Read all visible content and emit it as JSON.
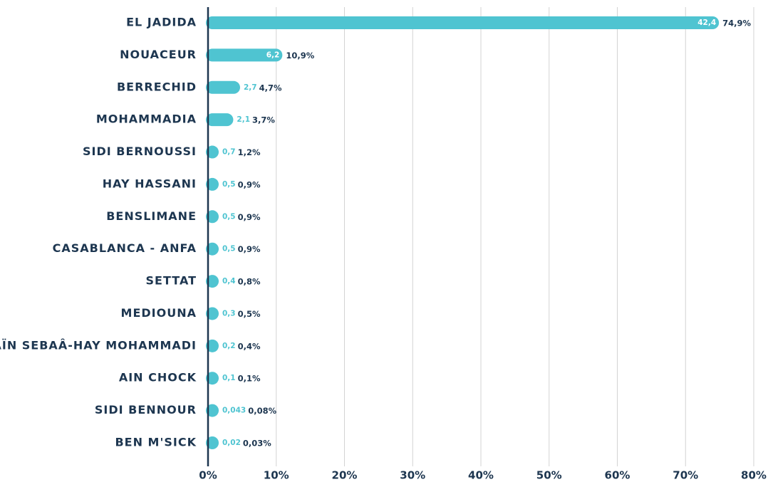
{
  "chart_data": {
    "type": "bar",
    "orientation": "horizontal",
    "categories": [
      "EL JADIDA",
      "NOUACEUR",
      "BERRECHID",
      "MOHAMMADIA",
      "SIDI BERNOUSSI",
      "HAY HASSANI",
      "BENSLIMANE",
      "CASABLANCA - ANFA",
      "SETTAT",
      "MEDIOUNA",
      "AÏN SEBAÂ-HAY MOHAMMADI",
      "AIN CHOCK",
      "SIDI BENNOUR",
      "BEN M'SICK"
    ],
    "values": [
      74.9,
      10.9,
      4.7,
      3.7,
      1.2,
      0.9,
      0.9,
      0.9,
      0.8,
      0.5,
      0.4,
      0.1,
      0.08,
      0.03
    ],
    "value_labels": [
      "74,9%",
      "10,9%",
      "4,7%",
      "3,7%",
      "1,2%",
      "0,9%",
      "0,9%",
      "0,9%",
      "0,8%",
      "0,5%",
      "0,4%",
      "0,1%",
      "0,08%",
      "0,03%"
    ],
    "amounts": [
      42.4,
      6.2,
      2.7,
      2.1,
      0.7,
      0.5,
      0.5,
      0.5,
      0.4,
      0.3,
      0.2,
      0.1,
      0.043,
      0.02
    ],
    "amount_labels": [
      "42,4",
      "6,2",
      "2,7",
      "2,1",
      "0,7",
      "0,5",
      "0,5",
      "0,5",
      "0,4",
      "0,3",
      "0,2",
      "0,1",
      "0,043",
      "0,02"
    ],
    "color": "#4fc4d1",
    "xlim": [
      0,
      80
    ],
    "xticks": [
      {
        "value": 0,
        "label": "0%"
      },
      {
        "value": 10,
        "label": "10%"
      },
      {
        "value": 20,
        "label": "20%"
      },
      {
        "value": 30,
        "label": "30%"
      },
      {
        "value": 40,
        "label": "40%"
      },
      {
        "value": 50,
        "label": "50%"
      },
      {
        "value": 60,
        "label": "60%"
      },
      {
        "value": 70,
        "label": "70%"
      },
      {
        "value": 80,
        "label": "80%"
      }
    ],
    "grid": true
  }
}
